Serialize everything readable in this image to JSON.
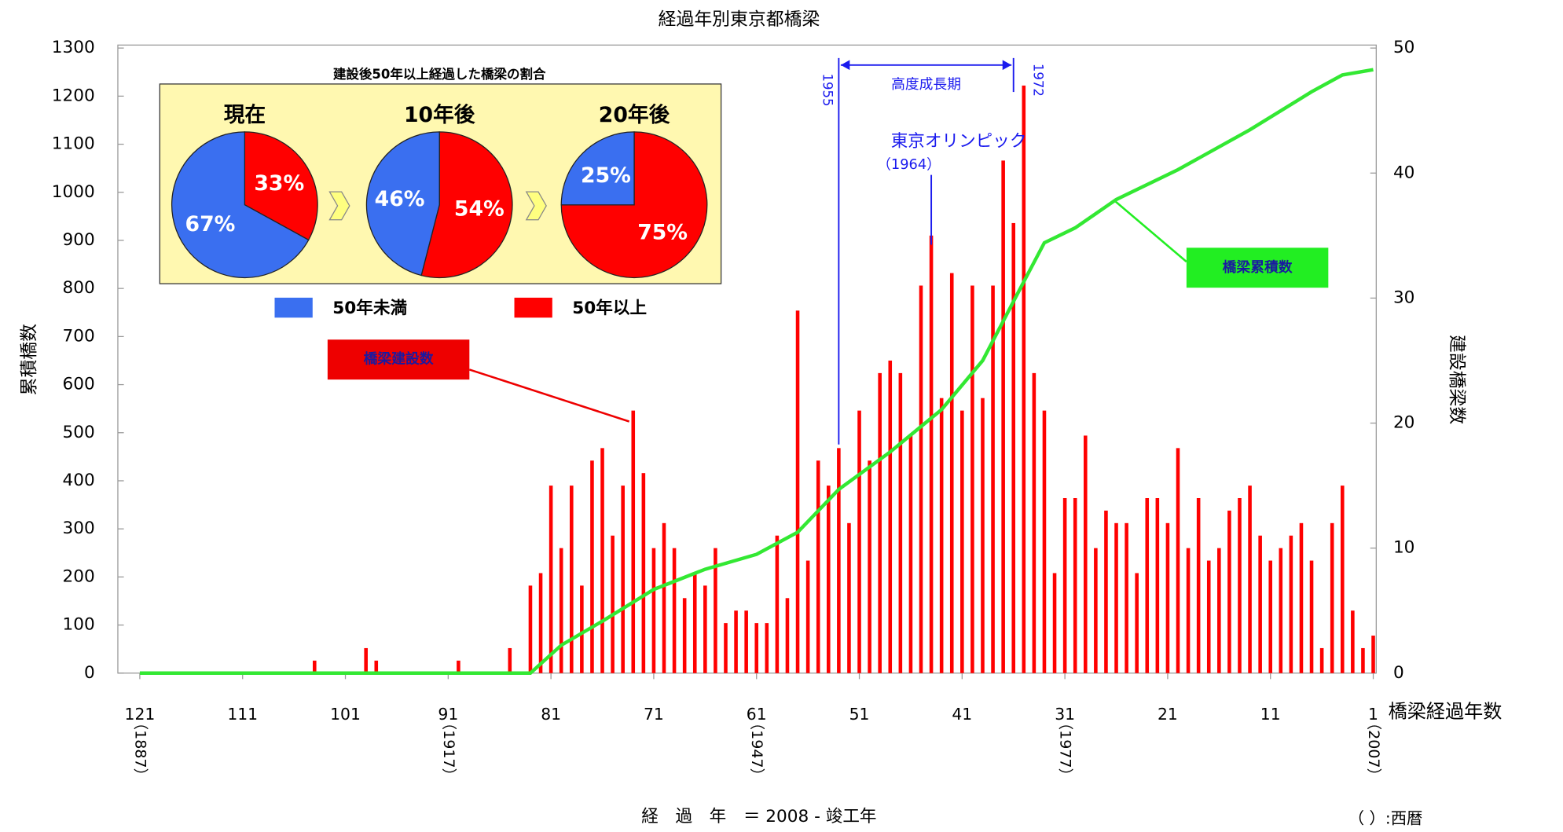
{
  "chart_data": {
    "type": "bar",
    "title": "経過年別東京都橋梁",
    "y_label": "累積橋数",
    "y2_label": "建設橋梁数",
    "x_label": "経　過　年　＝ 2008 - 竣工年",
    "x_axis_title": "橋梁経過年数",
    "year_note": "（ ）:西暦",
    "x": [
      121,
      120,
      119,
      118,
      117,
      116,
      115,
      114,
      113,
      112,
      111,
      110,
      109,
      108,
      107,
      106,
      105,
      104,
      103,
      102,
      101,
      100,
      99,
      98,
      97,
      96,
      95,
      94,
      93,
      92,
      91,
      90,
      89,
      88,
      87,
      86,
      85,
      84,
      83,
      82,
      81,
      80,
      79,
      78,
      77,
      76,
      75,
      74,
      73,
      72,
      71,
      70,
      69,
      68,
      67,
      66,
      65,
      64,
      63,
      62,
      61,
      60,
      59,
      58,
      57,
      56,
      55,
      54,
      53,
      52,
      51,
      50,
      49,
      48,
      47,
      46,
      45,
      44,
      43,
      42,
      41,
      40,
      39,
      38,
      37,
      36,
      35,
      34,
      33,
      32,
      31,
      30,
      29,
      28,
      27,
      26,
      25,
      24,
      23,
      22,
      21,
      20,
      19,
      18,
      17,
      16,
      15,
      14,
      13,
      12,
      11,
      10,
      9,
      8,
      7,
      6,
      5,
      4,
      3,
      2,
      1
    ],
    "xlim": [
      121,
      1
    ],
    "xticks": [
      121,
      111,
      101,
      91,
      81,
      71,
      61,
      51,
      41,
      31,
      21,
      11,
      1
    ],
    "year_ticks": [
      {
        "value": 121,
        "label": "（1887）"
      },
      {
        "value": 91,
        "label": "（1917）"
      },
      {
        "value": 61,
        "label": "（1947）"
      },
      {
        "value": 31,
        "label": "（1977）"
      },
      {
        "value": 1,
        "label": "（2007）"
      }
    ],
    "ylim": [
      0,
      1300
    ],
    "yticks": [
      0,
      100,
      200,
      300,
      400,
      500,
      600,
      700,
      800,
      900,
      1000,
      1100,
      1200,
      1300
    ],
    "y2lim": [
      0,
      50
    ],
    "y2ticks": [
      0,
      10,
      20,
      30,
      40,
      50
    ],
    "series": [
      {
        "name": "橋梁建設数",
        "type": "bar",
        "axis": "y2",
        "color": "#ff0000",
        "values": [
          0,
          0,
          0,
          0,
          0,
          0,
          0,
          0,
          0,
          0,
          0,
          0,
          0,
          0,
          0,
          0,
          0,
          1,
          0,
          0,
          0,
          0,
          2,
          1,
          0,
          0,
          0,
          0,
          0,
          0,
          0,
          1,
          0,
          0,
          0,
          0,
          2,
          0,
          7,
          8,
          15,
          10,
          15,
          7,
          17,
          18,
          11,
          15,
          21,
          16,
          10,
          12,
          10,
          6,
          8,
          7,
          10,
          4,
          5,
          5,
          4,
          4,
          11,
          6,
          29,
          9,
          17,
          15,
          18,
          12,
          21,
          17,
          24,
          25,
          24,
          19,
          31,
          35,
          22,
          32,
          21,
          31,
          22,
          31,
          41,
          36,
          47,
          24,
          21,
          8,
          14,
          14,
          19,
          10,
          13,
          12,
          12,
          8,
          14,
          14,
          12,
          18,
          10,
          14,
          9,
          10,
          13,
          14,
          15,
          11,
          9,
          10,
          11,
          12,
          9,
          2,
          12,
          15,
          5,
          2,
          3
        ]
      },
      {
        "name": "橋梁累積数",
        "type": "line",
        "axis": "y",
        "color": "#33e833",
        "x": [
          121,
          83,
          80,
          76,
          71,
          66,
          61,
          57,
          53,
          48,
          43,
          39,
          35,
          33,
          30,
          26,
          20,
          13,
          7,
          4,
          1
        ],
        "values": [
          0,
          0,
          58,
          108,
          174,
          216,
          247,
          293,
          382,
          460,
          548,
          650,
          814,
          895,
          926,
          985,
          1047,
          1130,
          1209,
          1244,
          1255
        ]
      }
    ],
    "period": {
      "label": "高度成長期",
      "start": {
        "value": 53,
        "label": "1955"
      },
      "end": {
        "value": 36,
        "label": "1972"
      }
    },
    "event": {
      "value": 44,
      "label": "東京オリンピック",
      "sublabel": "（1964）"
    },
    "inset": {
      "type": "pie",
      "title": "建設後50年以上経過した橋梁の割合",
      "categories": [
        "50年未満",
        "50年以上"
      ],
      "colors": [
        "#3a6ff0",
        "#ff0000"
      ],
      "pies": [
        {
          "label": "現在",
          "values": [
            67,
            33
          ],
          "value_labels": [
            "67%",
            "33%"
          ]
        },
        {
          "label": "10年後",
          "values": [
            46,
            54
          ],
          "value_labels": [
            "46%",
            "54%"
          ]
        },
        {
          "label": "20年後",
          "values": [
            25,
            75
          ],
          "value_labels": [
            "25%",
            "75%"
          ]
        }
      ]
    }
  }
}
